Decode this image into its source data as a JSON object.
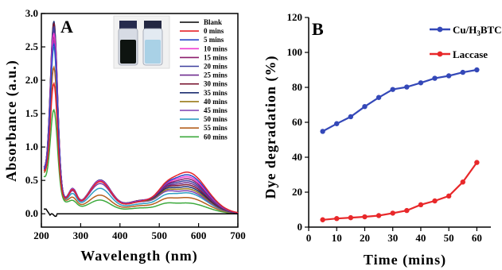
{
  "chart_data": [
    {
      "type": "line",
      "panel_label": "A",
      "xlabel": "Wavelength (nm)",
      "ylabel": "Absorbance (a.u.)",
      "xlim": [
        200,
        700
      ],
      "ylim": [
        -0.2,
        3.0
      ],
      "xticks": [
        200,
        300,
        400,
        500,
        600,
        700
      ],
      "yticks": [
        0.0,
        0.5,
        1.0,
        1.5,
        2.0,
        2.5,
        3.0
      ],
      "ytick_labels": [
        "0.0",
        "0.5",
        "1.0",
        "1.5",
        "2.0",
        "2.5",
        "3.0"
      ],
      "legend_position": "top-right",
      "grid": false,
      "series": [
        {
          "name": "Blank",
          "color": "#000000",
          "peak1": 0.07,
          "peak2": 0.0,
          "trough": 0.0,
          "shoulder": 0.0,
          "base": 0.0
        },
        {
          "name": "0 mins",
          "color": "#e5232a",
          "peak1": 1.85,
          "peak2": 0.62,
          "trough": 0.26,
          "shoulder": 0.45,
          "base": 0.72
        },
        {
          "name": "5 mins",
          "color": "#2a46c7",
          "peak1": 2.45,
          "peak2": 0.58,
          "trough": 0.27,
          "shoulder": 0.45,
          "base": 0.74
        },
        {
          "name": "10 mins",
          "color": "#ef3ad0",
          "peak1": 2.6,
          "peak2": 0.55,
          "trough": 0.28,
          "shoulder": 0.46,
          "base": 0.75
        },
        {
          "name": "15 mins",
          "color": "#8b1d6d",
          "peak1": 2.55,
          "peak2": 0.52,
          "trough": 0.28,
          "shoulder": 0.46,
          "base": 0.75
        },
        {
          "name": "20 mins",
          "color": "#3d3f9e",
          "peak1": 2.7,
          "peak2": 0.49,
          "trough": 0.29,
          "shoulder": 0.47,
          "base": 0.76
        },
        {
          "name": "25 mins",
          "color": "#6f2d8f",
          "peak1": 2.65,
          "peak2": 0.46,
          "trough": 0.29,
          "shoulder": 0.47,
          "base": 0.76
        },
        {
          "name": "30 mins",
          "color": "#7a1530",
          "peak1": 2.75,
          "peak2": 0.43,
          "trough": 0.3,
          "shoulder": 0.47,
          "base": 0.76
        },
        {
          "name": "35 mins",
          "color": "#1b2d70",
          "peak1": 2.78,
          "peak2": 0.4,
          "trough": 0.29,
          "shoulder": 0.46,
          "base": 0.75
        },
        {
          "name": "40 mins",
          "color": "#9a7a1a",
          "peak1": 2.72,
          "peak2": 0.37,
          "trough": 0.28,
          "shoulder": 0.45,
          "base": 0.74
        },
        {
          "name": "45 mins",
          "color": "#7b3fb0",
          "peak1": 2.5,
          "peak2": 0.34,
          "trough": 0.27,
          "shoulder": 0.42,
          "base": 0.72
        },
        {
          "name": "50 mins",
          "color": "#2f9fc4",
          "peak1": 2.4,
          "peak2": 0.31,
          "trough": 0.22,
          "shoulder": 0.35,
          "base": 0.7
        },
        {
          "name": "55 mins",
          "color": "#b5611f",
          "peak1": 2.1,
          "peak2": 0.24,
          "trough": 0.18,
          "shoulder": 0.25,
          "base": 0.68
        },
        {
          "name": "60 mins",
          "color": "#3daa3d",
          "peak1": 1.47,
          "peak2": 0.16,
          "trough": 0.13,
          "shoulder": 0.18,
          "base": 0.62
        }
      ]
    },
    {
      "type": "line",
      "panel_label": "B",
      "xlabel": "Time (mins)",
      "ylabel": "Dye degradation (%)",
      "xlim": [
        0,
        65
      ],
      "ylim": [
        0,
        120
      ],
      "xticks": [
        0,
        10,
        20,
        30,
        40,
        50,
        60
      ],
      "yticks": [
        0,
        20,
        40,
        60,
        80,
        100,
        120
      ],
      "legend_position": "top-right",
      "grid": false,
      "x": [
        5,
        10,
        15,
        20,
        25,
        30,
        35,
        40,
        45,
        50,
        55,
        60
      ],
      "series": [
        {
          "name": "Cu/H3BTC",
          "name_main": "Cu/H",
          "name_sub": "3",
          "name_tail": "BTC",
          "color": "#3448b8",
          "values": [
            54.8,
            59.2,
            63.2,
            69.0,
            74.2,
            78.8,
            80.2,
            82.6,
            85.2,
            86.6,
            88.6,
            90.0
          ]
        },
        {
          "name": "Laccase",
          "color": "#e8282a",
          "values": [
            4.2,
            4.9,
            5.4,
            5.9,
            6.6,
            8.0,
            9.5,
            12.8,
            15.0,
            17.8,
            25.8,
            37.0
          ]
        }
      ]
    }
  ]
}
